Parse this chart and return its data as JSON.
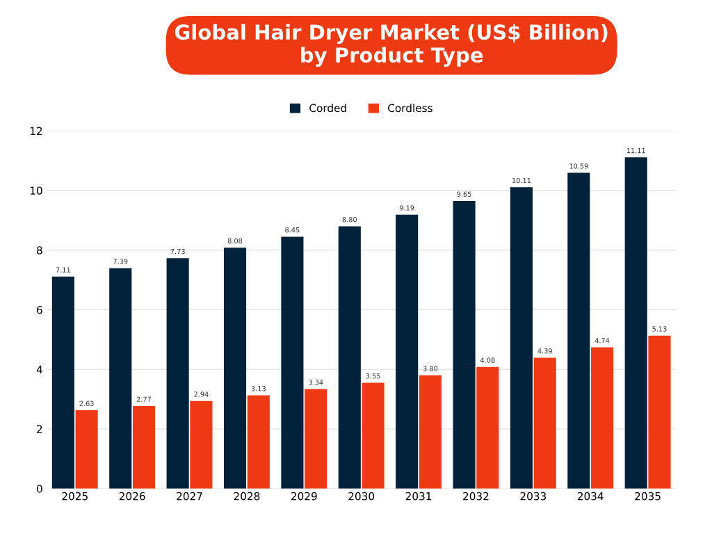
{
  "chart_data": {
    "type": "bar",
    "title": "Global Hair Dryer Market (US$ Billion)\nby Product Type",
    "categories": [
      "2025",
      "2026",
      "2027",
      "2028",
      "2029",
      "2030",
      "2031",
      "2032",
      "2033",
      "2034",
      "2035"
    ],
    "series": [
      {
        "name": "Corded",
        "color": "#02223b",
        "values": [
          7.11,
          7.39,
          7.73,
          8.08,
          8.45,
          8.8,
          9.19,
          9.65,
          10.11,
          10.59,
          11.11
        ],
        "value_labels": [
          "7.11",
          "7.39",
          "7.73",
          "8.08",
          "8.45",
          "8.80",
          "9.19",
          "9.65",
          "10.11",
          "10.59",
          "11.11"
        ]
      },
      {
        "name": "Cordless",
        "color": "#ee3a12",
        "values": [
          2.63,
          2.77,
          2.94,
          3.13,
          3.34,
          3.55,
          3.8,
          4.08,
          4.39,
          4.74,
          5.13
        ],
        "value_labels": [
          "2.63",
          "2.77",
          "2.94",
          "3.13",
          "3.34",
          "3.55",
          "3.80",
          "4.08",
          "4.39",
          "4.74",
          "5.13"
        ]
      }
    ],
    "ylim": [
      0,
      12
    ],
    "yticks": [
      0,
      2,
      4,
      6,
      8,
      10,
      12
    ],
    "grid": "y",
    "legend": "top"
  }
}
